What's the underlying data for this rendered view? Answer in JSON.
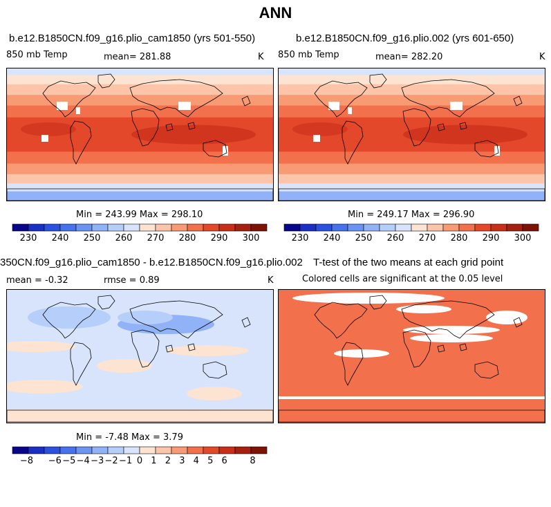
{
  "figure": {
    "title": "ANN"
  },
  "panels": [
    {
      "title": "b.e12.B1850CN.f09_g16.plio_cam1850 (yrs 501-550)",
      "left_label": "850 mb Temp",
      "center_label": "mean= 281.88",
      "right_label": "K",
      "stats": "Min = 243.99 Max = 298.10",
      "style": "temp"
    },
    {
      "title": "b.e12.B1850CN.f09_g16.plio.002 (yrs 601-650)",
      "left_label": "850 mb Temp",
      "center_label": "mean= 282.20",
      "right_label": "K",
      "stats": "Min = 249.17 Max = 296.90",
      "style": "temp"
    },
    {
      "title": "350CN.f09_g16.plio_cam1850 - b.e12.B1850CN.f09_g16.plio.002",
      "left_label": "mean =  -0.32",
      "center_label": "rmse =    0.89",
      "right_label": "K",
      "stats": "Min =  -7.48 Max =    3.79",
      "style": "diff"
    },
    {
      "title": "T-test of the two means at each grid point",
      "left_label": "",
      "center_label": "Colored cells are significant at the 0.05 level",
      "right_label": "",
      "stats": "",
      "style": "ttest"
    }
  ],
  "chart_data": [
    {
      "type": "heatmap",
      "title": "b.e12.B1850CN.f09_g16.plio_cam1850 (yrs 501-550)",
      "variable": "850 mb Temp",
      "units": "K",
      "mean": 281.88,
      "min": 243.99,
      "max": 298.1,
      "colorbar": {
        "levels": [
          225,
          230,
          235,
          240,
          245,
          250,
          255,
          260,
          265,
          270,
          275,
          280,
          285,
          290,
          295,
          300,
          305
        ],
        "tick_labels": [
          "230",
          "240",
          "250",
          "260",
          "270",
          "280",
          "290",
          "300"
        ],
        "colors": [
          "#08068a",
          "#1a2fc4",
          "#2b52de",
          "#4672ec",
          "#6b93f2",
          "#91b2f6",
          "#b6cefa",
          "#d7e4fb",
          "#fde3d2",
          "#fcc4a8",
          "#f89a74",
          "#f2714c",
          "#e4482b",
          "#c92e19",
          "#a5200f",
          "#7d1206"
        ]
      }
    },
    {
      "type": "heatmap",
      "title": "b.e12.B1850CN.f09_g16.plio.002 (yrs 601-650)",
      "variable": "850 mb Temp",
      "units": "K",
      "mean": 282.2,
      "min": 249.17,
      "max": 296.9,
      "colorbar": {
        "levels": [
          225,
          230,
          235,
          240,
          245,
          250,
          255,
          260,
          265,
          270,
          275,
          280,
          285,
          290,
          295,
          300,
          305
        ],
        "tick_labels": [
          "230",
          "240",
          "250",
          "260",
          "270",
          "280",
          "290",
          "300"
        ],
        "colors": [
          "#08068a",
          "#1a2fc4",
          "#2b52de",
          "#4672ec",
          "#6b93f2",
          "#91b2f6",
          "#b6cefa",
          "#d7e4fb",
          "#fde3d2",
          "#fcc4a8",
          "#f89a74",
          "#f2714c",
          "#e4482b",
          "#c92e19",
          "#a5200f",
          "#7d1206"
        ]
      }
    },
    {
      "type": "heatmap",
      "title": "350CN.f09_g16.plio_cam1850 - b.e12.B1850CN.f09_g16.plio.002",
      "units": "K",
      "mean": -0.32,
      "rmse": 0.89,
      "min": -7.48,
      "max": 3.79,
      "colorbar": {
        "levels": [
          -9,
          -8,
          -7,
          -6,
          -5,
          -4,
          -3,
          -2,
          -1,
          0,
          1,
          2,
          3,
          4,
          5,
          6,
          7,
          8,
          9
        ],
        "tick_labels": [
          "-8",
          "-6",
          "-5",
          "-4",
          "-3",
          "-2",
          "-1",
          "0",
          "1",
          "2",
          "3",
          "4",
          "5",
          "6",
          "8"
        ],
        "colors": [
          "#08068a",
          "#1a2fc4",
          "#2b52de",
          "#4672ec",
          "#6b93f2",
          "#91b2f6",
          "#b6cefa",
          "#d7e4fb",
          "#fde3d2",
          "#fcc4a8",
          "#f89a74",
          "#f2714c",
          "#e4482b",
          "#c92e19",
          "#a5200f",
          "#7d1206"
        ]
      }
    },
    {
      "type": "heatmap",
      "title": "T-test of the two means at each grid point",
      "subtitle": "Colored cells are significant at the 0.05 level",
      "significance_level": 0.05,
      "colors": {
        "significant": "#f2714c",
        "not_significant": "#ffffff"
      }
    }
  ]
}
